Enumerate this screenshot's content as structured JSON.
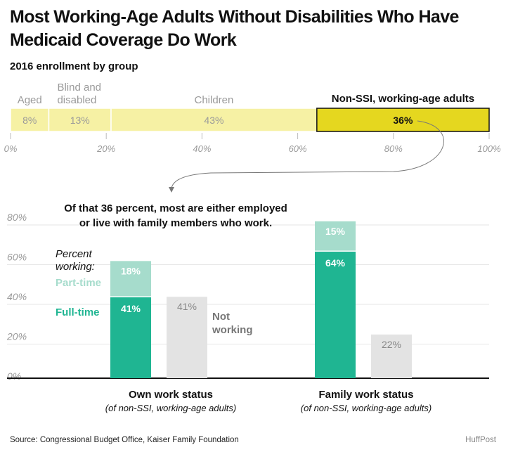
{
  "title": "Most Working-Age Adults Without Disabilities Who Have Medicaid Coverage Do Work",
  "subtitle": "2016 enrollment by group",
  "colors": {
    "pale_yellow": "#f6f1a4",
    "highlight_yellow": "#e5d71f",
    "full_time": "#1fb592",
    "part_time": "#a6dccc",
    "not_working": "#e3e3e3",
    "axis_text": "#9a9a9a"
  },
  "chart_data": [
    {
      "type": "bar",
      "orientation": "horizontal-stacked",
      "xlim": [
        0,
        100
      ],
      "x_ticks": [
        "0%",
        "20%",
        "40%",
        "60%",
        "80%",
        "100%"
      ],
      "segments": [
        {
          "label": "Aged",
          "value": 8,
          "display": "8%"
        },
        {
          "label": "Blind and disabled",
          "value": 13,
          "display": "13%"
        },
        {
          "label": "Children",
          "value": 43,
          "display": "43%"
        },
        {
          "label": "Non-SSI, working-age adults",
          "value": 36,
          "display": "36%"
        }
      ]
    },
    {
      "type": "bar",
      "orientation": "vertical-stacked",
      "annotation": "Of that 36 percent, most are either employed or live with family members who work.",
      "ylim": [
        0,
        80
      ],
      "y_ticks": [
        "0%",
        "20%",
        "40%",
        "60%",
        "80%"
      ],
      "legend_title": "Percent working:",
      "series_labels": {
        "part_time": "Part-time",
        "full_time": "Full-time",
        "not_working": "Not working"
      },
      "groups": [
        {
          "name": "Own work status",
          "note": "(of non-SSI, working-age adults)",
          "full_time": 41,
          "full_time_display": "41%",
          "part_time": 18,
          "part_time_display": "18%",
          "not_working": 41,
          "not_working_display": "41%"
        },
        {
          "name": "Family work status",
          "note": "(of non-SSI, working-age adults)",
          "full_time": 64,
          "full_time_display": "64%",
          "part_time": 15,
          "part_time_display": "15%",
          "not_working": 22,
          "not_working_display": "22%"
        }
      ]
    }
  ],
  "footer": {
    "source": "Source: Congressional Budget Office, Kaiser Family Foundation",
    "brand": "HuffPost"
  }
}
